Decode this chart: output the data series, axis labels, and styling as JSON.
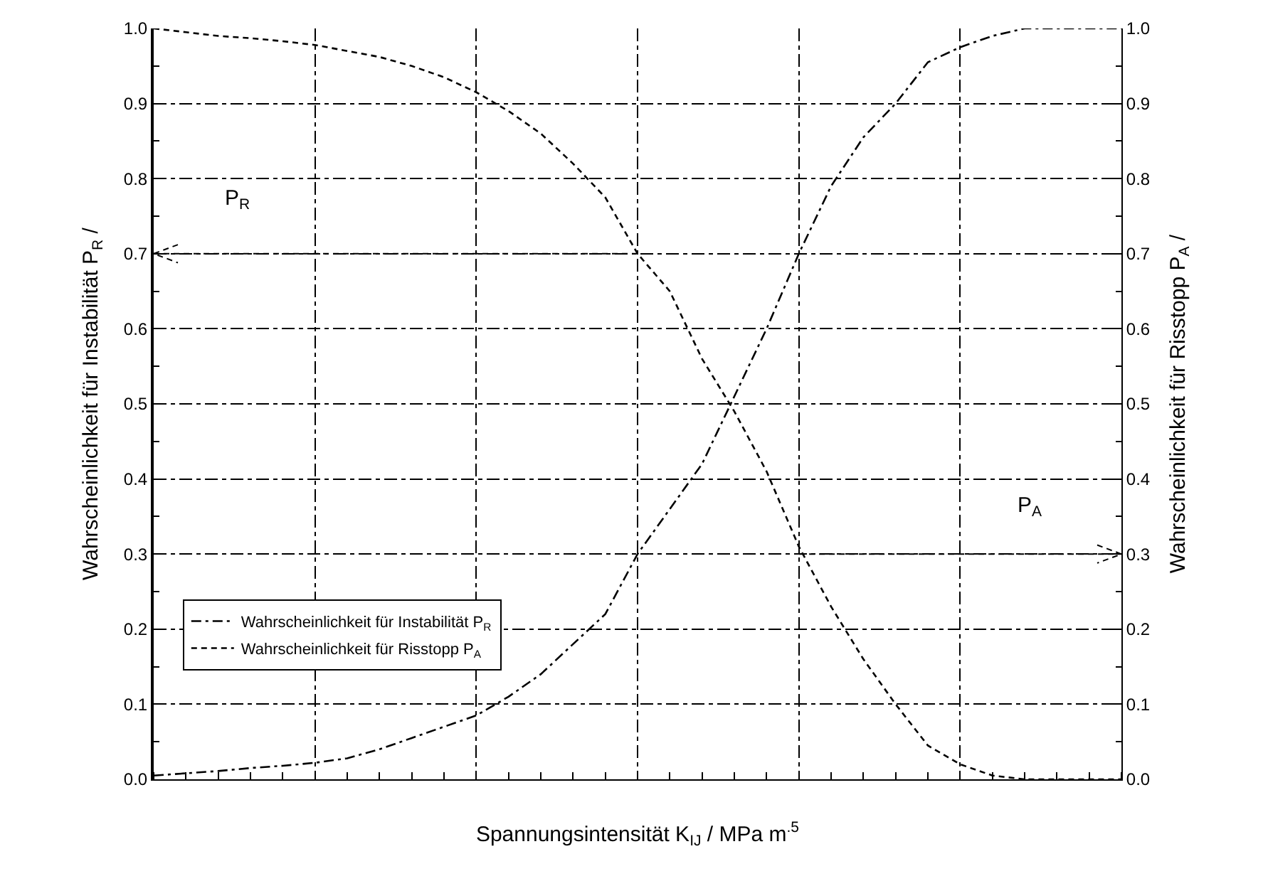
{
  "chart_data": {
    "type": "line",
    "xlabel": "Spannungsintensität K$_{IJ}$ / MPa m$^{.5}$",
    "ylabel": "Wahrscheinlichkeit für Instabilität P$_{R}$ /",
    "y2label": "Wahrscheinlichkeit für Risstopp P$_{A}$ /",
    "categories": [
      null,
      null,
      null,
      null,
      null,
      null,
      null,
      null,
      null,
      null,
      null,
      null,
      null,
      null,
      null,
      null,
      null,
      null,
      null,
      null,
      null,
      null,
      null,
      null,
      null,
      null,
      null,
      null,
      null,
      null,
      null
    ],
    "series": [
      {
        "name": "Wahrscheinlichkeit für Instabilität P$_{R}$",
        "color": "#000000",
        "line_style": "dashdot",
        "values": [
          0.005,
          0.008,
          0.011,
          0.015,
          0.018,
          0.022,
          0.028,
          0.04,
          0.055,
          0.07,
          0.085,
          0.11,
          0.14,
          0.18,
          0.22,
          0.3,
          0.36,
          0.42,
          0.51,
          0.6,
          0.7,
          0.79,
          0.855,
          0.9,
          0.955,
          0.975,
          0.99,
          1.0,
          1.0,
          1.0,
          1.0
        ]
      },
      {
        "name": "Wahrscheinlichkeit für Risstopp P$_{A}$",
        "color": "#000000",
        "line_style": "dashed",
        "axis": "y2",
        "values": [
          1.0,
          0.995,
          0.99,
          0.987,
          0.983,
          0.978,
          0.97,
          0.962,
          0.95,
          0.935,
          0.915,
          0.89,
          0.86,
          0.82,
          0.775,
          0.7,
          0.65,
          0.56,
          0.49,
          0.41,
          0.31,
          0.23,
          0.16,
          0.1,
          0.045,
          0.02,
          0.005,
          0.0,
          0.0,
          0.0,
          0.0
        ]
      }
    ],
    "ylim": [
      0,
      1
    ],
    "yticks": [
      {
        "value": 0,
        "label": "0.0"
      },
      {
        "value": 0.1,
        "label": "0.1"
      },
      {
        "value": 0.2,
        "label": "0.2"
      },
      {
        "value": 0.3,
        "label": "0.3"
      },
      {
        "value": 0.4,
        "label": "0.4"
      },
      {
        "value": 0.5,
        "label": "0.5"
      },
      {
        "value": 0.6,
        "label": "0.6"
      },
      {
        "value": 0.7,
        "label": "0.7"
      },
      {
        "value": 0.8,
        "label": "0.8"
      },
      {
        "value": 0.9,
        "label": "0.9"
      },
      {
        "value": 1,
        "label": "1.0"
      }
    ],
    "y2lim": [
      0,
      1
    ],
    "y2ticks": [
      {
        "value": 0,
        "label": "0.0"
      },
      {
        "value": 0.1,
        "label": "0.1"
      },
      {
        "value": 0.2,
        "label": "0.2"
      },
      {
        "value": 0.3,
        "label": "0.3"
      },
      {
        "value": 0.4,
        "label": "0.4"
      },
      {
        "value": 0.5,
        "label": "0.5"
      },
      {
        "value": 0.6,
        "label": "0.6"
      },
      {
        "value": 0.7,
        "label": "0.7"
      },
      {
        "value": 0.8,
        "label": "0.8"
      },
      {
        "value": 0.9,
        "label": "0.9"
      },
      {
        "value": 1,
        "label": "1.0"
      }
    ],
    "annotations": [
      "P$_{R}$",
      "P$_{A}$"
    ],
    "tick_labels": "y",
    "grid": true,
    "legend": "bottom left",
    "marker": "none"
  }
}
